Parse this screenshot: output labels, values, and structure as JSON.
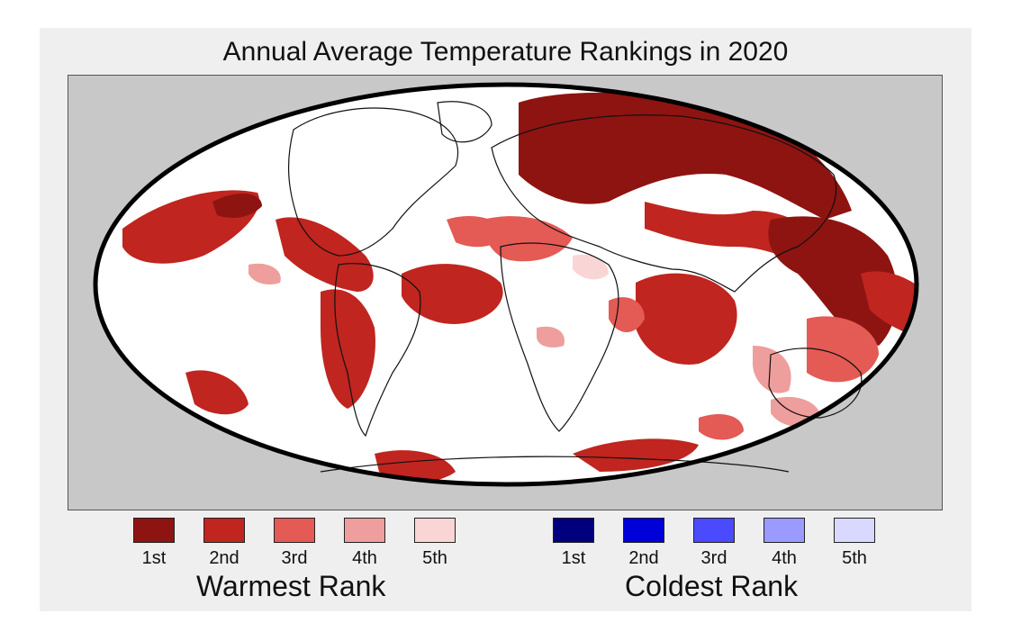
{
  "title": "Annual Average Temperature Rankings in 2020",
  "legend": {
    "warmest": {
      "title": "Warmest Rank",
      "items": [
        {
          "label": "1st",
          "color": "#8e1411"
        },
        {
          "label": "2nd",
          "color": "#c0251f"
        },
        {
          "label": "3rd",
          "color": "#e45a55"
        },
        {
          "label": "4th",
          "color": "#ee9e9c"
        },
        {
          "label": "5th",
          "color": "#f9d6d5"
        }
      ]
    },
    "coldest": {
      "title": "Coldest Rank",
      "items": [
        {
          "label": "1st",
          "color": "#00007f"
        },
        {
          "label": "2nd",
          "color": "#0000d9"
        },
        {
          "label": "3rd",
          "color": "#4a4aff"
        },
        {
          "label": "4th",
          "color": "#9a9aff"
        },
        {
          "label": "5th",
          "color": "#d9d9ff"
        }
      ]
    }
  },
  "colors": {
    "ocean_land_background": "#ffffff",
    "outside_projection": "#c8c8c8",
    "panel": "#efefef"
  }
}
